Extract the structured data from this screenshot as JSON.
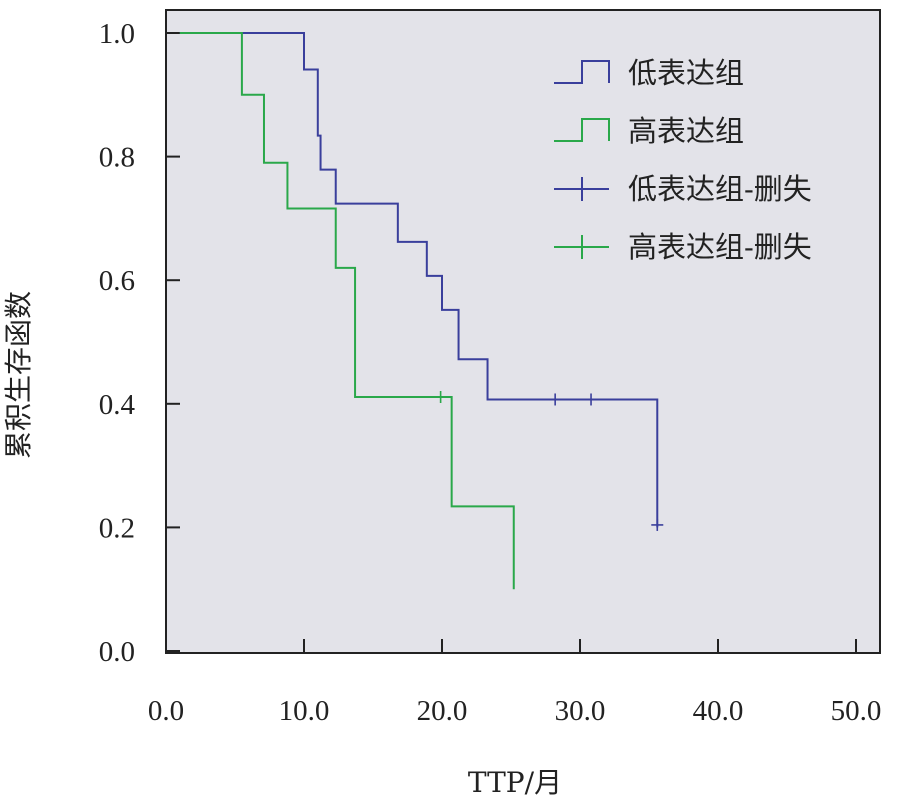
{
  "chart_data": {
    "type": "line",
    "xlabel": "TTP/月",
    "ylabel": "累积生存函数",
    "xlim": [
      0,
      50
    ],
    "ylim": [
      0,
      1.0
    ],
    "x_ticks": [
      0,
      10,
      20,
      30,
      40,
      50
    ],
    "x_tick_labels": [
      "0.0",
      "10.0",
      "20.0",
      "30.0",
      "40.0",
      "50.0"
    ],
    "y_ticks": [
      0,
      0.2,
      0.4,
      0.6,
      0.8,
      1.0
    ],
    "y_tick_labels": [
      "0.0",
      "0.2",
      "0.4",
      "0.6",
      "0.8",
      "1.0"
    ],
    "grid": false,
    "plot_background": "#e3e3e9",
    "legend_position": "top-right",
    "series": [
      {
        "name": "低表达组",
        "color": "#3a3f9c",
        "step_x": [
          1,
          10,
          11,
          11.2,
          12.3,
          16.8,
          18.9,
          20.0,
          21.2,
          23.3,
          26.7,
          35.6
        ],
        "step_y": [
          1.0,
          0.941,
          0.834,
          0.779,
          0.724,
          0.662,
          0.607,
          0.552,
          0.472,
          0.407,
          0.407,
          0.2
        ]
      },
      {
        "name": "高表达组",
        "color": "#2aa84a",
        "step_x": [
          1,
          5.5,
          7.1,
          8.8,
          12.3,
          13.7,
          20.7,
          25.2
        ],
        "step_y": [
          1.0,
          0.9,
          0.79,
          0.716,
          0.62,
          0.411,
          0.234,
          0.1
        ]
      }
    ],
    "censored": [
      {
        "name": "低表达组-删失",
        "color": "#3a3f9c",
        "points": [
          [
            28.2,
            0.407
          ],
          [
            30.8,
            0.407
          ],
          [
            35.6,
            0.204
          ]
        ]
      },
      {
        "name": "高表达组-删失",
        "color": "#2aa84a",
        "points": [
          [
            19.9,
            0.411
          ]
        ]
      }
    ]
  }
}
